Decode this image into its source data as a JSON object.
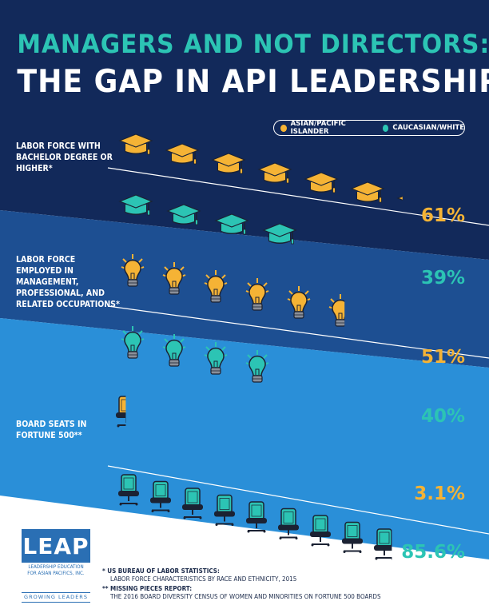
{
  "title": {
    "line1": "MANAGERS AND NOT DIRECTORS:",
    "line2": "THE GAP IN API LEADERSHIP"
  },
  "legend": {
    "api_label": "ASIAN/PACIFIC ISLANDER",
    "white_label": "CAUCASIAN/WHITE"
  },
  "colors": {
    "api": "#f5b335",
    "white": "#2cc4b4",
    "band1": "#12295a",
    "band2": "#1d4f92",
    "band3": "#2a8fd8"
  },
  "sections": [
    {
      "label": "LABOR FORCE WITH BACHELOR DEGREE OR HIGHER*",
      "icon": "graduation-cap-icon",
      "api_value": "61%",
      "white_value": "39%",
      "api_pct": 61,
      "white_pct": 39
    },
    {
      "label": "LABOR FORCE EMPLOYED IN MANAGEMENT, PROFESSIONAL, AND RELATED OCCUPATIONS*",
      "icon": "light-bulb-icon",
      "api_value": "51%",
      "white_value": "40%",
      "api_pct": 51,
      "white_pct": 40
    },
    {
      "label": "BOARD SEATS IN FORTUNE 500**",
      "icon": "office-chair-icon",
      "api_value": "3.1%",
      "white_value": "85.6%",
      "api_pct": 3.1,
      "white_pct": 85.6
    }
  ],
  "notes": {
    "note1_title": "* US BUREAU OF LABOR STATISTICS:",
    "note1_text": "LABOR FORCE CHARACTERISTICS BY RACE AND ETHNICITY, 2015",
    "note2_title": "** MISSING PIECES REPORT:",
    "note2_text": "THE 2016 BOARD DIVERSITY CENSUS OF WOMEN AND MINORITIES ON FORTUNE 500 BOARDS"
  },
  "logo": {
    "name": "LEAP",
    "line1": "LEADERSHIP EDUCATION",
    "line2": "FOR ASIAN PACIFICS, INC.",
    "tagline": "GROWING LEADERS"
  }
}
